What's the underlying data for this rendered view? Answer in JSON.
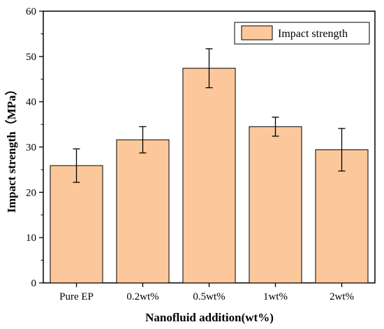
{
  "chart_data": {
    "type": "bar",
    "categories": [
      "Pure EP",
      "0.2wt%",
      "0.5wt%",
      "1wt%",
      "2wt%"
    ],
    "series": [
      {
        "name": "Impact strength",
        "values": [
          25.9,
          31.6,
          47.4,
          34.5,
          29.4
        ],
        "errors": [
          3.7,
          2.9,
          4.3,
          2.1,
          4.7
        ]
      }
    ],
    "xlabel": "Nanofluid addition(wt%)",
    "ylabel": "Impact strength（MPa）",
    "ylim": [
      0,
      60
    ],
    "yticks": [
      0,
      10,
      20,
      30,
      40,
      50,
      60
    ],
    "grid": false,
    "legend": "top-right",
    "colors": {
      "bar_fill": "#fcc89b",
      "bar_stroke": "#000000"
    }
  }
}
